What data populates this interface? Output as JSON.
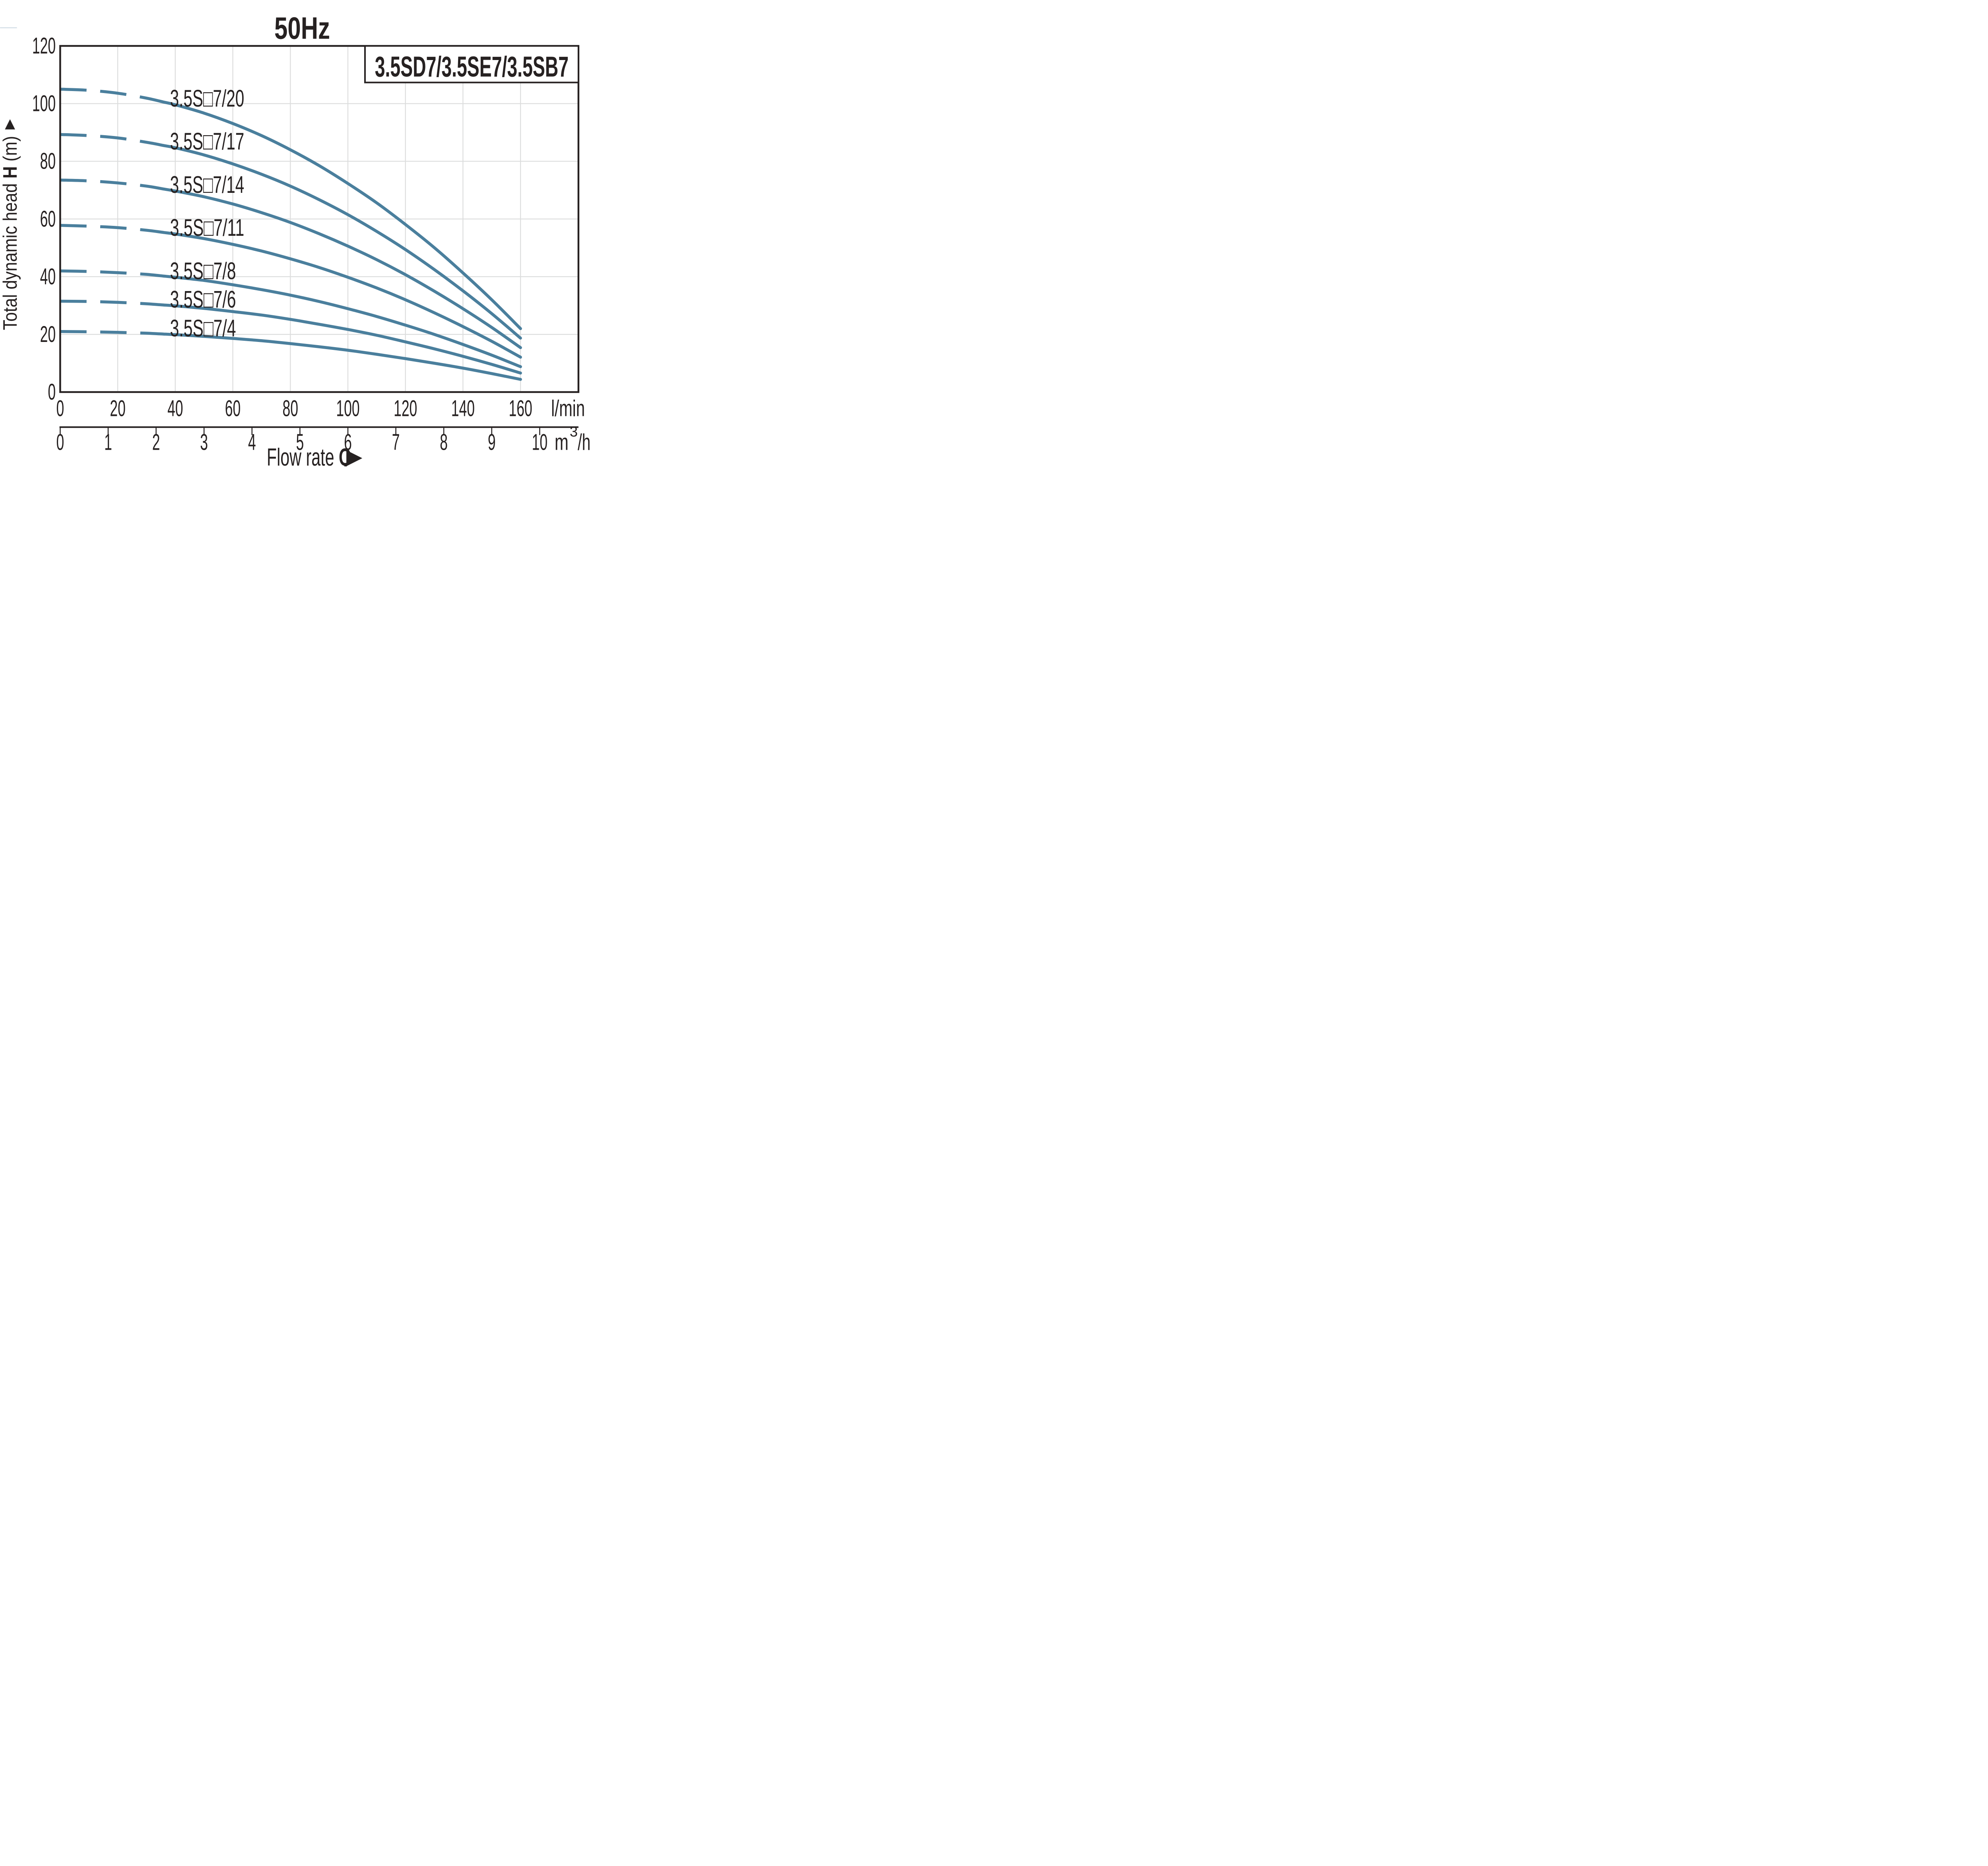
{
  "title": "50Hz",
  "legend": {
    "models_label": "3.5SD7/3.5SE7/3.5SB7"
  },
  "colors": {
    "accent_blue": "#457e9e",
    "curve_blue": "#4a7f9d",
    "grid_gray": "#dcdddd",
    "frame_dark": "#262121",
    "artifact_gray_blue": "#c3d3de"
  },
  "chart_data": {
    "type": "line",
    "title": "50Hz",
    "model_box": "3.5SD7/3.5SE7/3.5SB7",
    "xlabel": {
      "pre": "Flow rate ",
      "bold": "Q",
      "arrow": "▶"
    },
    "ylabel": {
      "pre": "Total dynamic head ",
      "bold": "H",
      "post": " (m)",
      "arrow": "▲"
    },
    "x_axis_primary": {
      "unit": "l/min",
      "ticks": [
        0,
        20,
        40,
        60,
        80,
        100,
        120,
        140,
        160
      ],
      "range_lmin": [
        0,
        180
      ]
    },
    "x_axis_secondary": {
      "unit_pre": "m",
      "unit_sup": "3",
      "unit_post": "/h",
      "ticks": [
        0,
        1,
        2,
        3,
        4,
        5,
        6,
        7,
        8,
        9,
        10
      ]
    },
    "y_axis": {
      "ticks": [
        0,
        20,
        40,
        60,
        80,
        100,
        120
      ],
      "ylim": [
        0,
        120
      ]
    },
    "grid": "major every 20 l/min and 20 m, on",
    "legend_position": "top-right",
    "dashed_until_x": 36,
    "x": [
      0,
      10,
      20,
      30,
      40,
      50,
      60,
      70,
      80,
      90,
      100,
      110,
      120,
      130,
      140,
      150,
      160
    ],
    "series": [
      {
        "name": "3.5S□7/20",
        "stages": 20,
        "values": [
          105.0,
          104.6,
          103.6,
          101.9,
          99.6,
          96.7,
          93.1,
          88.9,
          84.0,
          78.5,
          72.3,
          65.6,
          58.1,
          50.1,
          41.3,
          32.0,
          22.0
        ]
      },
      {
        "name": "3.5S□7/17",
        "stages": 17,
        "values": [
          89.3,
          88.9,
          88.1,
          86.6,
          84.7,
          82.2,
          79.1,
          75.5,
          71.4,
          66.7,
          61.5,
          55.7,
          49.4,
          42.5,
          35.1,
          27.2,
          18.7
        ]
      },
      {
        "name": "3.5S□7/14",
        "stages": 14,
        "values": [
          73.5,
          73.2,
          72.5,
          71.4,
          69.7,
          67.7,
          65.2,
          62.2,
          58.8,
          54.9,
          50.6,
          45.9,
          40.7,
          35.0,
          28.9,
          22.4,
          15.4
        ]
      },
      {
        "name": "3.5S□7/11",
        "stages": 11,
        "values": [
          57.8,
          57.5,
          57.0,
          56.1,
          54.8,
          53.2,
          51.2,
          48.9,
          46.2,
          43.2,
          39.8,
          36.1,
          32.0,
          27.5,
          22.7,
          17.6,
          12.1
        ]
      },
      {
        "name": "3.5S□7/8",
        "stages": 8,
        "values": [
          42.0,
          41.8,
          41.4,
          40.8,
          39.8,
          38.7,
          37.2,
          35.5,
          33.6,
          31.4,
          28.9,
          26.2,
          23.2,
          20.0,
          16.5,
          12.8,
          8.8
        ]
      },
      {
        "name": "3.5S□7/6",
        "stages": 6,
        "values": [
          31.5,
          31.4,
          31.1,
          30.6,
          29.9,
          29.0,
          27.9,
          26.7,
          25.2,
          23.5,
          21.7,
          19.7,
          17.4,
          15.0,
          12.4,
          9.6,
          6.6
        ]
      },
      {
        "name": "3.5S□7/4",
        "stages": 4,
        "values": [
          21.0,
          20.9,
          20.7,
          20.4,
          19.9,
          19.3,
          18.6,
          17.8,
          16.8,
          15.7,
          14.5,
          13.1,
          11.6,
          10.0,
          8.3,
          6.4,
          4.4
        ]
      }
    ]
  }
}
